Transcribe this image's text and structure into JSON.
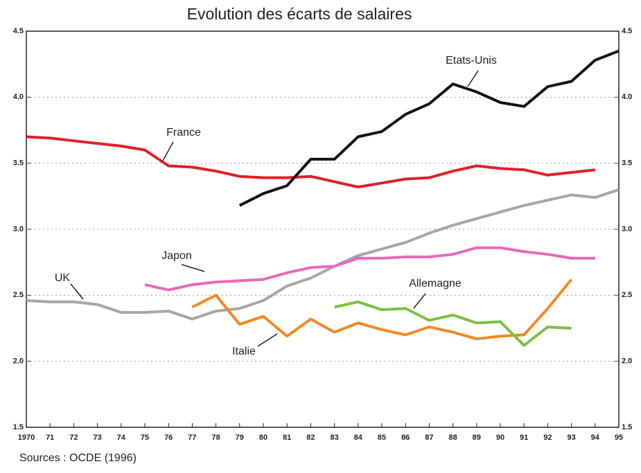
{
  "chart_data": {
    "type": "line",
    "title": "Evolution des écarts de salaires",
    "source": "Sources : OCDE (1996)",
    "categories": [
      "1970",
      "71",
      "72",
      "73",
      "74",
      "75",
      "76",
      "77",
      "78",
      "79",
      "80",
      "81",
      "82",
      "83",
      "84",
      "85",
      "86",
      "87",
      "88",
      "89",
      "90",
      "91",
      "92",
      "93",
      "94",
      "95"
    ],
    "ylim": [
      1.5,
      4.5
    ],
    "yticks": [
      1.5,
      {
        "value": 2,
        "label": "2.0"
      },
      2.5,
      {
        "value": 3,
        "label": "3.0"
      },
      3.5,
      {
        "value": 4,
        "label": "4.0"
      },
      4.5
    ],
    "grid": true,
    "series": [
      {
        "name": "France",
        "color": "#e0202a",
        "values": [
          3.7,
          3.69,
          3.67,
          3.65,
          3.63,
          3.6,
          3.48,
          3.47,
          3.44,
          3.4,
          3.39,
          3.39,
          3.4,
          3.36,
          3.32,
          3.35,
          3.38,
          3.39,
          3.44,
          3.48,
          3.46,
          3.45,
          3.41,
          3.43,
          3.45,
          null
        ]
      },
      {
        "name": "Etats-Unis",
        "color": "#111111",
        "values": [
          null,
          null,
          null,
          null,
          null,
          null,
          null,
          null,
          null,
          3.18,
          3.27,
          3.33,
          3.53,
          3.53,
          3.7,
          3.74,
          3.87,
          3.95,
          4.1,
          4.04,
          3.96,
          3.93,
          4.08,
          4.12,
          4.28,
          4.35
        ]
      },
      {
        "name": "UK",
        "color": "#a6a6a6",
        "values": [
          2.46,
          2.45,
          2.45,
          2.43,
          2.37,
          2.37,
          2.38,
          2.32,
          2.38,
          2.4,
          2.46,
          2.57,
          2.63,
          2.72,
          2.8,
          2.85,
          2.9,
          2.97,
          3.03,
          3.08,
          3.13,
          3.18,
          3.22,
          3.26,
          3.24,
          3.3
        ]
      },
      {
        "name": "Japon",
        "color": "#e66bb8",
        "values": [
          null,
          null,
          null,
          null,
          null,
          2.58,
          2.54,
          2.58,
          2.6,
          2.61,
          2.62,
          2.67,
          2.71,
          2.72,
          2.78,
          2.78,
          2.79,
          2.79,
          2.81,
          2.86,
          2.86,
          2.83,
          2.81,
          2.78,
          2.78,
          null
        ]
      },
      {
        "name": "Italie",
        "color": "#f08a25",
        "values": [
          null,
          null,
          null,
          null,
          null,
          null,
          null,
          2.41,
          2.5,
          2.28,
          2.34,
          2.19,
          2.32,
          2.22,
          2.29,
          2.24,
          2.2,
          2.26,
          2.22,
          2.17,
          2.19,
          2.2,
          2.4,
          2.62,
          null,
          null
        ]
      },
      {
        "name": "Allemagne",
        "color": "#7ac143",
        "values": [
          null,
          null,
          null,
          null,
          null,
          null,
          null,
          null,
          null,
          null,
          null,
          null,
          null,
          2.41,
          2.45,
          2.39,
          2.4,
          2.31,
          2.35,
          2.29,
          2.3,
          2.12,
          2.26,
          2.25,
          null,
          null
        ]
      }
    ]
  }
}
